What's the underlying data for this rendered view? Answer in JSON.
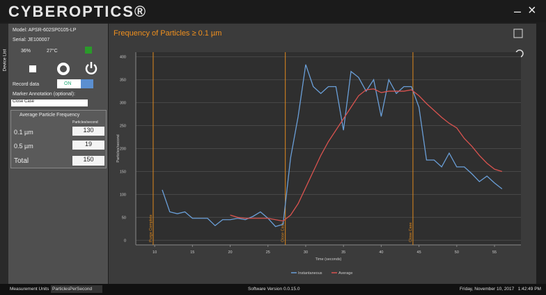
{
  "header": {
    "logo": "CYBEROPTICS®",
    "minimize": "–",
    "close": "×"
  },
  "sidebar": {
    "tab": "Device List",
    "model": "Model: APSR-602SP0105-LP",
    "serial": "Serial: JE100007",
    "battery": "36%",
    "temperature": "27°C",
    "record_label": "Record data",
    "record_state": "ON",
    "marker_label": "Marker Annotation (optional):",
    "marker_input": "Close Case",
    "table": {
      "title": "Average Particle Frequency",
      "unit": "Particles/second",
      "rows": [
        [
          "0.1 µm",
          "130"
        ],
        [
          "0.5 µm",
          "19"
        ],
        [
          "Total",
          "150"
        ]
      ]
    }
  },
  "chart_data": {
    "type": "line",
    "title": "Frequency of Particles ≥ 0.1 µm",
    "x_label": "Time (seconds)",
    "y_label": "Particles/second",
    "x": [
      11,
      12,
      13,
      14,
      15,
      16,
      17,
      18,
      19,
      20,
      21,
      22,
      23,
      24,
      25,
      26,
      27,
      28,
      29,
      30,
      31,
      32,
      33,
      34,
      35,
      36,
      37,
      38,
      39,
      40,
      41,
      42,
      43,
      44,
      45,
      46,
      47,
      48,
      49,
      50,
      51,
      52,
      53,
      54,
      55,
      56
    ],
    "series": [
      {
        "name": "Instantaneous",
        "color": "#6a9fd8",
        "values": [
          110,
          62,
          58,
          62,
          48,
          48,
          48,
          32,
          45,
          45,
          48,
          45,
          52,
          62,
          48,
          30,
          35,
          180,
          270,
          383,
          335,
          320,
          335,
          335,
          240,
          368,
          355,
          325,
          350,
          270,
          350,
          320,
          335,
          335,
          290,
          175,
          175,
          160,
          190,
          160,
          160,
          145,
          128,
          140,
          125,
          112
        ]
      },
      {
        "name": "Average",
        "color": "#d9534f",
        "values": [
          null,
          null,
          null,
          null,
          null,
          null,
          null,
          null,
          null,
          55,
          50,
          48,
          48,
          48,
          48,
          45,
          42,
          55,
          80,
          115,
          150,
          185,
          215,
          240,
          265,
          290,
          315,
          328,
          330,
          322,
          325,
          325,
          325,
          328,
          315,
          298,
          283,
          268,
          255,
          245,
          222,
          205,
          185,
          168,
          155,
          150
        ]
      }
    ],
    "markers": [
      {
        "x": 9.8,
        "label": "Purge Complete"
      },
      {
        "x": 27.3,
        "label": "Close Case"
      },
      {
        "x": 44.2,
        "label": "Close Case"
      }
    ],
    "marker_color": "#e08a1e",
    "xlim": [
      7.5,
      58.5
    ],
    "xticks": [
      10,
      15,
      20,
      25,
      30,
      35,
      40,
      45,
      50,
      55
    ],
    "ylim": [
      -10,
      410
    ],
    "yticks": [
      0,
      50,
      100,
      150,
      200,
      250,
      300,
      350,
      400
    ],
    "grid": true
  },
  "footer": {
    "units_label": "Measurement Units",
    "units_value": "ParticlesPerSecond",
    "version": "Software Version 0.0.15.0",
    "datetime": "Friday, November 10, 2017   1:42:49 PM"
  }
}
